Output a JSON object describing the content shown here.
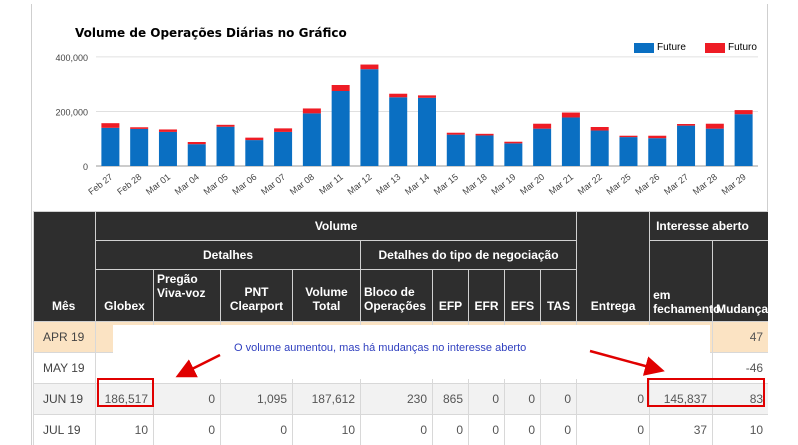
{
  "chart_data": {
    "type": "bar",
    "stacked": true,
    "title": "Volume de Operações Diárias no Gráfico",
    "categories": [
      "Feb 27",
      "Feb 28",
      "Mar 01",
      "Mar 04",
      "Mar 05",
      "Mar 06",
      "Mar 07",
      "Mar 08",
      "Mar 11",
      "Mar 12",
      "Mar 13",
      "Mar 14",
      "Mar 15",
      "Mar 18",
      "Mar 19",
      "Mar 20",
      "Mar 21",
      "Mar 22",
      "Mar 25",
      "Mar 26",
      "Mar 27",
      "Mar 28",
      "Mar 29"
    ],
    "series": [
      {
        "name": "Future",
        "color": "#0a6fc2",
        "values": [
          140000,
          136000,
          125000,
          80000,
          144000,
          95000,
          125000,
          193000,
          275000,
          355000,
          252000,
          250000,
          115000,
          112000,
          83000,
          137000,
          178000,
          130000,
          106000,
          102000,
          148000,
          137000,
          190000
        ]
      },
      {
        "name": "Futuro",
        "color": "#ee1c25",
        "values": [
          17000,
          6000,
          9000,
          8000,
          7000,
          9000,
          13000,
          18000,
          22000,
          17000,
          13000,
          9000,
          7000,
          6000,
          6000,
          18000,
          18000,
          13000,
          5000,
          9000,
          6000,
          18000,
          15000
        ]
      }
    ],
    "yticks": [
      "0",
      "200,000",
      "400,000"
    ],
    "ylim": [
      0,
      440000
    ],
    "grid": true,
    "legend_position": "top-right"
  },
  "table": {
    "headers": {
      "volume": "Volume",
      "interesse": "Interesse aberto",
      "detalhes": "Detalhes",
      "detalhes_tipo": "Detalhes do tipo de negociação",
      "mes": "Mês",
      "globex": "Globex",
      "pregao": "Pregão Viva-voz",
      "pnt": "PNT Clearport",
      "volume_total": "Volume Total",
      "bloco": "Bloco de Operações",
      "efp": "EFP",
      "efr": "EFR",
      "efs": "EFS",
      "tas": "TAS",
      "entrega": "Entrega",
      "em_fechamento": "em fechamento",
      "mudanca": "Mudança"
    },
    "rows": [
      {
        "month": "APR 19",
        "cells": [
          "",
          "",
          "",
          "",
          "",
          "",
          "",
          "",
          "",
          "",
          "",
          ""
        ],
        "mudanca": "47"
      },
      {
        "month": "MAY 19",
        "cells": [
          "",
          "",
          "",
          "",
          "",
          "",
          "",
          "",
          "",
          "",
          "",
          ""
        ],
        "mudanca": "-46"
      },
      {
        "month": "JUN 19",
        "cells": [
          "186,517",
          "0",
          "1,095",
          "187,612",
          "230",
          "865",
          "0",
          "0",
          "0",
          "0",
          "145,837"
        ],
        "mudanca": "83"
      },
      {
        "month": "JUL 19",
        "cells": [
          "10",
          "0",
          "0",
          "10",
          "0",
          "0",
          "0",
          "0",
          "0",
          "0",
          "37"
        ],
        "mudanca": "10"
      }
    ]
  },
  "annotation": "O volume aumentou, mas há mudanças no interesse aberto"
}
